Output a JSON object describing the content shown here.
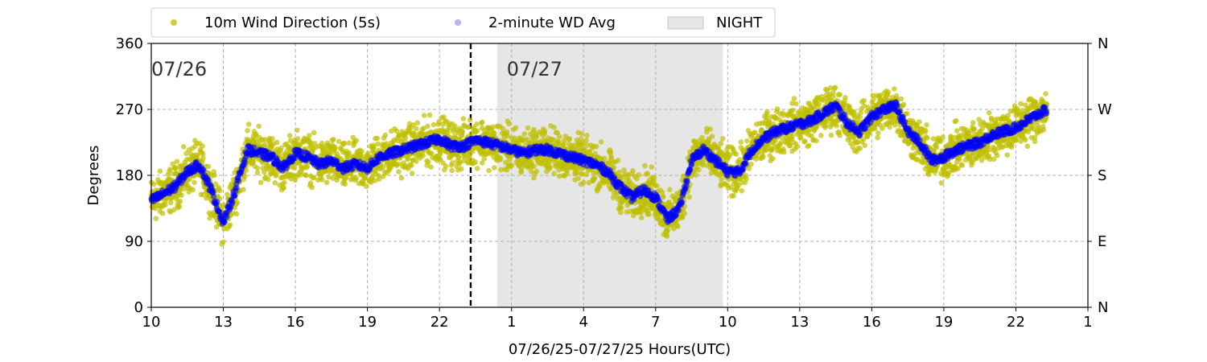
{
  "chart_data": {
    "type": "scatter",
    "xlabel": "07/26/25-07/27/25  Hours(UTC)",
    "ylabel": "Degrees",
    "xlim": [
      10,
      49
    ],
    "ylim": [
      0,
      360
    ],
    "x_ticks": [
      10,
      13,
      16,
      19,
      22,
      25,
      28,
      31,
      34,
      37,
      40,
      43,
      46,
      49
    ],
    "x_tick_labels": [
      "10",
      "13",
      "16",
      "19",
      "22",
      "1",
      "4",
      "7",
      "10",
      "13",
      "16",
      "19",
      "22",
      "1"
    ],
    "y_ticks": [
      0,
      90,
      180,
      270,
      360
    ],
    "y_tick_labels": [
      "0",
      "90",
      "180",
      "270",
      "360"
    ],
    "right_axis_labels": [
      "N",
      "E",
      "S",
      "W",
      "N"
    ],
    "grid": true,
    "legend_position": "top",
    "day_labels": [
      {
        "text": "07/26",
        "x": 10,
        "y": 325
      },
      {
        "text": "07/27",
        "x": 24.8,
        "y": 325
      }
    ],
    "midnight_x": 23.3,
    "night_band": {
      "label": "NIGHT",
      "x_start": 24.4,
      "x_end": 33.8,
      "color": "#e6e6e6"
    },
    "series": [
      {
        "name": "10m Wind Direction (5s)",
        "color": "#bfbf00",
        "x": [
          10,
          10.5,
          11,
          11.5,
          12,
          12.5,
          13,
          13.5,
          14,
          14.5,
          15,
          15.5,
          16,
          16.5,
          17,
          17.5,
          18,
          18.5,
          19,
          19.5,
          20,
          20.5,
          21,
          21.5,
          22,
          22.5,
          23,
          23.5,
          24,
          24.5,
          25,
          25.5,
          26,
          26.5,
          27,
          27.5,
          28,
          28.5,
          29,
          29.5,
          30,
          30.5,
          31,
          31.5,
          32,
          32.5,
          33,
          33.5,
          34,
          34.5,
          35,
          35.5,
          36,
          36.5,
          37,
          37.5,
          38,
          38.5,
          39,
          39.5,
          40,
          40.5,
          41,
          41.5,
          42,
          42.5,
          43,
          43.5,
          44,
          44.5,
          45,
          45.5,
          46,
          46.5,
          47,
          47.3
        ],
        "values": [
          145,
          155,
          165,
          185,
          195,
          160,
          115,
          160,
          215,
          210,
          205,
          190,
          210,
          205,
          195,
          200,
          190,
          195,
          190,
          205,
          210,
          215,
          220,
          225,
          230,
          220,
          220,
          228,
          225,
          220,
          215,
          210,
          215,
          215,
          210,
          205,
          200,
          195,
          185,
          165,
          150,
          160,
          150,
          120,
          135,
          200,
          215,
          200,
          185,
          185,
          215,
          230,
          240,
          245,
          250,
          255,
          265,
          275,
          250,
          240,
          260,
          270,
          275,
          240,
          225,
          200,
          205,
          215,
          220,
          225,
          235,
          240,
          245,
          255,
          265,
          270
        ],
        "spread": 30
      },
      {
        "name": "2-minute WD Avg",
        "color": "#0000ff",
        "x": [
          10,
          10.5,
          11,
          11.5,
          12,
          12.5,
          13,
          13.5,
          14,
          14.5,
          15,
          15.5,
          16,
          16.5,
          17,
          17.5,
          18,
          18.5,
          19,
          19.5,
          20,
          20.5,
          21,
          21.5,
          22,
          22.5,
          23,
          23.5,
          24,
          24.5,
          25,
          25.5,
          26,
          26.5,
          27,
          27.5,
          28,
          28.5,
          29,
          29.5,
          30,
          30.5,
          31,
          31.5,
          32,
          32.5,
          33,
          33.5,
          34,
          34.5,
          35,
          35.5,
          36,
          36.5,
          37,
          37.5,
          38,
          38.5,
          39,
          39.5,
          40,
          40.5,
          41,
          41.5,
          42,
          42.5,
          43,
          43.5,
          44,
          44.5,
          45,
          45.5,
          46,
          46.5,
          47,
          47.3
        ],
        "values": [
          145,
          155,
          165,
          185,
          195,
          160,
          115,
          160,
          215,
          210,
          205,
          190,
          210,
          205,
          195,
          200,
          190,
          195,
          190,
          205,
          210,
          215,
          220,
          225,
          230,
          220,
          220,
          228,
          225,
          220,
          215,
          210,
          215,
          215,
          210,
          205,
          200,
          195,
          185,
          165,
          150,
          160,
          150,
          120,
          135,
          200,
          215,
          200,
          185,
          185,
          215,
          230,
          240,
          245,
          250,
          255,
          265,
          275,
          250,
          240,
          260,
          270,
          275,
          240,
          225,
          200,
          205,
          215,
          220,
          225,
          235,
          240,
          245,
          255,
          265,
          270
        ],
        "spread": 12
      }
    ]
  },
  "legend": {
    "items": [
      "10m Wind Direction (5s)",
      "2-minute WD Avg",
      "NIGHT"
    ]
  }
}
